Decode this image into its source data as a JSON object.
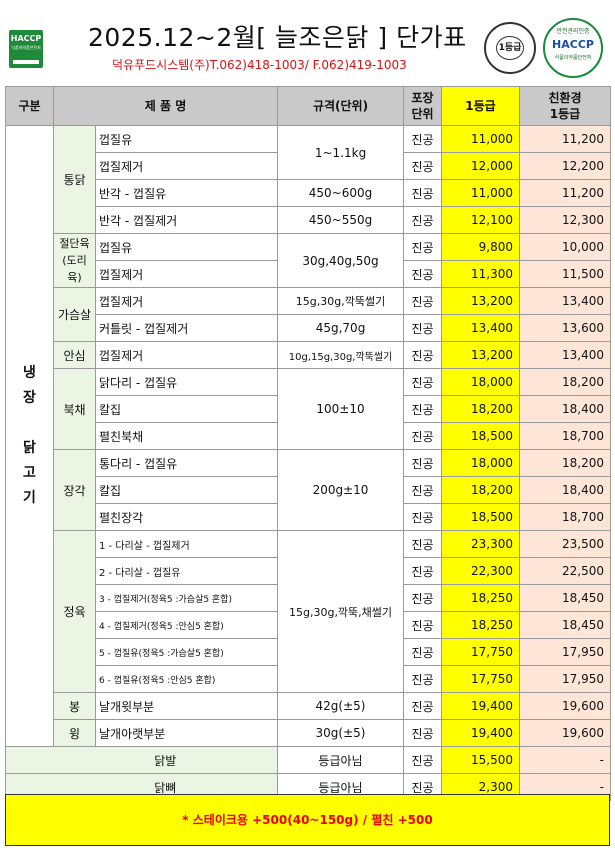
{
  "header": {
    "haccp_left_label": "HACCP",
    "haccp_left_sub": "식품의약품안전처",
    "title": "2025.12~2월[ 늘조은닭 ] 단가표",
    "subtitle": "덕유푸드시스템(주)T.062)418-1003/ F.062)419-1003",
    "grade_badge": "1등급",
    "haccp_badge_top": "안전관리인증",
    "haccp_badge_mid": "HACCP",
    "haccp_badge_bot": "식품의약품안전처"
  },
  "columns": {
    "category": "구분",
    "product": "제 품 명",
    "spec": "규격(단위)",
    "pack_1": "포장",
    "pack_2": "단위",
    "grade1": "1등급",
    "eco_1": "친환경",
    "eco_2": "1등급"
  },
  "group_label": "냉\n장\n\n닭\n고\n기",
  "rows": [
    {
      "sub": "통닭",
      "name": "껍질유",
      "spec": "1~1.1kg",
      "pack": "진공",
      "price": "11,000",
      "eco": "11,200"
    },
    {
      "name": "껍질제거",
      "pack": "진공",
      "price": "12,000",
      "eco": "12,200"
    },
    {
      "name": "반각 - 껍질유",
      "spec": "450~600g",
      "pack": "진공",
      "price": "11,000",
      "eco": "11,200"
    },
    {
      "name": "반각 - 껍질제거",
      "spec": "450~550g",
      "pack": "진공",
      "price": "12,100",
      "eco": "12,300"
    },
    {
      "sub": "절단육\n(도리\n육)",
      "name": "껍질유",
      "spec": "30g,40g,50g",
      "pack": "진공",
      "price": "9,800",
      "eco": "10,000"
    },
    {
      "name": "껍질제거",
      "pack": "진공",
      "price": "11,300",
      "eco": "11,500"
    },
    {
      "sub": "가슴살",
      "name": "껍질제거",
      "spec": "15g,30g,깍뚝썰기",
      "pack": "진공",
      "price": "13,200",
      "eco": "13,400"
    },
    {
      "name": "커틀릿 - 껍질제거",
      "spec": "45g,70g",
      "pack": "진공",
      "price": "13,400",
      "eco": "13,600"
    },
    {
      "sub": "안심",
      "name": "껍질제거",
      "spec": "10g,15g,30g,깍뚝썰기",
      "pack": "진공",
      "price": "13,200",
      "eco": "13,400"
    },
    {
      "sub": "북채",
      "name": "닭다리 - 껍질유",
      "spec": "100±10",
      "pack": "진공",
      "price": "18,000",
      "eco": "18,200"
    },
    {
      "name": "칼집",
      "pack": "진공",
      "price": "18,200",
      "eco": "18,400"
    },
    {
      "name": "펼친북채",
      "pack": "진공",
      "price": "18,500",
      "eco": "18,700"
    },
    {
      "sub": "장각",
      "name": "통다리 - 껍질유",
      "spec": "200g±10",
      "pack": "진공",
      "price": "18,000",
      "eco": "18,200"
    },
    {
      "name": "칼집",
      "pack": "진공",
      "price": "18,200",
      "eco": "18,400"
    },
    {
      "name": "펼친장각",
      "pack": "진공",
      "price": "18,500",
      "eco": "18,700"
    },
    {
      "sub": "정육",
      "name": "1 - 다리살 - 껍질제거",
      "spec": "15g,30g,깍뚝,채썰기",
      "pack": "진공",
      "price": "23,300",
      "eco": "23,500"
    },
    {
      "name": "2 - 다리살 - 껍질유",
      "pack": "진공",
      "price": "22,300",
      "eco": "22,500"
    },
    {
      "name": "3 - 껍질제거(정육5 :가슴살5 혼합)",
      "pack": "진공",
      "price": "18,250",
      "eco": "18,450"
    },
    {
      "name": "4 - 껍질제거(정육5 :안심5 혼합)",
      "pack": "진공",
      "price": "18,250",
      "eco": "18,450"
    },
    {
      "name": "5 - 껍질유(정육5 :가슴살5 혼합)",
      "pack": "진공",
      "price": "17,750",
      "eco": "17,950"
    },
    {
      "name": "6 - 껍질유(정육5 :안심5 혼합)",
      "pack": "진공",
      "price": "17,750",
      "eco": "17,950"
    },
    {
      "sub": "봉",
      "name": "날개윗부분",
      "spec": "42g(±5)",
      "pack": "진공",
      "price": "19,400",
      "eco": "19,600"
    },
    {
      "sub": "윙",
      "name": "날개아랫부분",
      "spec": "30g(±5)",
      "pack": "진공",
      "price": "19,400",
      "eco": "19,600"
    },
    {
      "name": "닭발",
      "spec": "등급아님",
      "pack": "진공",
      "price": "15,500",
      "eco": "-"
    },
    {
      "name": "닭뼈",
      "spec": "등급아님",
      "pack": "진공",
      "price": "2,300",
      "eco": "-"
    }
  ],
  "footer": "*  스테이크용  +500(40~150g)  /  펼친  +500"
}
